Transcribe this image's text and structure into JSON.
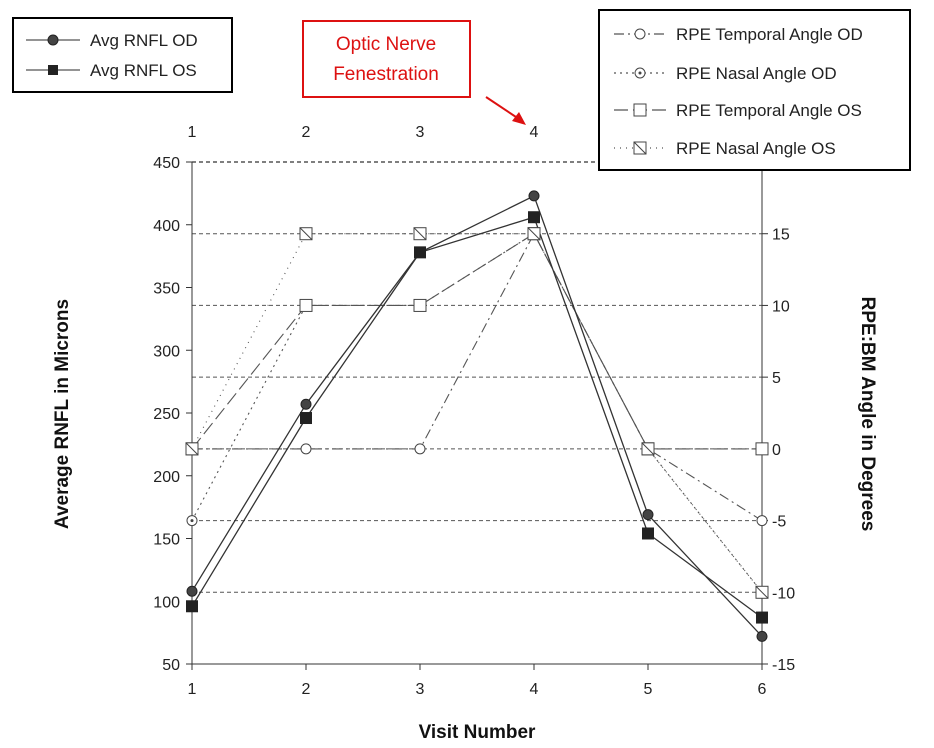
{
  "chart_data": {
    "type": "line",
    "xlabel": "Visit Number",
    "ylabel": "Average RNFL in Microns",
    "y2label": "RPE:BM  Angle in Degrees",
    "x": [
      1,
      2,
      3,
      4,
      5,
      6
    ],
    "top_ticks": [
      "1",
      "2",
      "3",
      "4"
    ],
    "xlim": [
      1,
      6
    ],
    "ylim": [
      50,
      450
    ],
    "y_ticks": [
      50,
      100,
      150,
      200,
      250,
      300,
      350,
      400,
      450
    ],
    "y2lim": [
      -15,
      20
    ],
    "y2_ticks": [
      -15,
      -10,
      -5,
      0,
      5,
      10,
      15
    ],
    "grid": "horizontal dashed at right-axis ticks",
    "series": [
      {
        "name": "Avg RNFL  OD",
        "axis": "left",
        "marker": "circle",
        "fill": "#444444",
        "dash": "",
        "values": [
          108,
          257,
          378,
          423,
          169,
          72
        ]
      },
      {
        "name": "Avg RNFL  OS",
        "axis": "left",
        "marker": "square",
        "fill": "#222222",
        "dash": "",
        "values": [
          96,
          246,
          378,
          406,
          154,
          87
        ]
      },
      {
        "name": "RPE Temporal Angle OD",
        "axis": "right",
        "marker": "circle",
        "fill": "#ffffff",
        "dash": "10,4,2,4",
        "values": [
          0,
          0,
          0,
          15,
          0,
          -5
        ]
      },
      {
        "name": "RPE Nasal Angle OD",
        "axis": "right",
        "marker": "circle-dot",
        "fill": "#ffffff",
        "dash": "2,4",
        "values": [
          -5,
          10,
          10,
          15,
          0,
          -10
        ]
      },
      {
        "name": "RPE Temporal Angle OS",
        "axis": "right",
        "marker": "square",
        "fill": "#ffffff",
        "dash": "14,5",
        "values": [
          0,
          10,
          10,
          15,
          0,
          0
        ]
      },
      {
        "name": "RPE Nasal Angle OS",
        "axis": "right",
        "marker": "square-x",
        "fill": "#ffffff",
        "dash": "1,5",
        "values": [
          0,
          15,
          15,
          15,
          0,
          -10
        ]
      }
    ],
    "annotation": {
      "lines": [
        "Optic Nerve",
        "Fenestration"
      ],
      "points_to_visit": 4
    }
  }
}
